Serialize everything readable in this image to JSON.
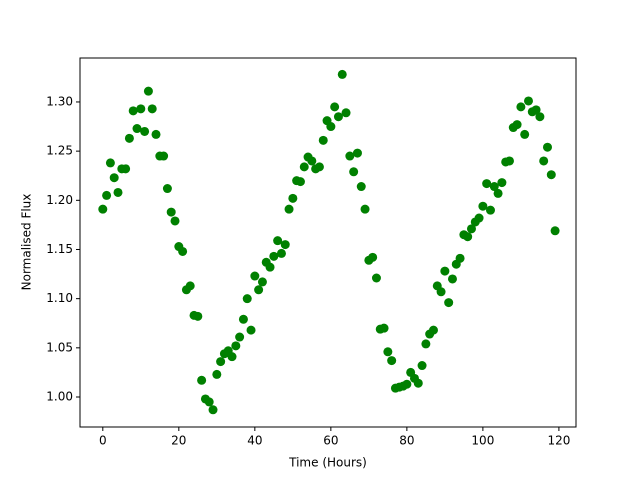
{
  "chart_data": {
    "type": "scatter",
    "color": "#008000",
    "grid": false,
    "xlabel": "Time (Hours)",
    "ylabel": "Normalised Flux",
    "xlim": [
      -6,
      124.5
    ],
    "ylim": [
      0.9695,
      1.3447
    ],
    "xticks": [
      0,
      20,
      40,
      60,
      80,
      100,
      120
    ],
    "yticks": [
      {
        "value": 1.0,
        "label": "1.00"
      },
      1.05,
      {
        "value": 1.1,
        "label": "1.10"
      },
      1.15,
      {
        "value": 1.2,
        "label": "1.20"
      },
      1.25,
      {
        "value": 1.3,
        "label": "1.30"
      }
    ],
    "x": [
      0,
      1,
      2,
      3,
      4,
      5,
      6,
      7,
      8,
      9,
      10,
      11,
      12,
      13,
      14,
      15,
      16,
      17,
      18,
      19,
      20,
      21,
      22,
      23,
      24,
      25,
      26,
      27,
      28,
      29,
      30,
      31,
      32,
      33,
      34,
      35,
      36,
      37,
      38,
      39,
      40,
      41,
      42,
      43,
      44,
      45,
      46,
      47,
      48,
      49,
      50,
      51,
      52,
      53,
      54,
      55,
      56,
      57,
      58,
      59,
      60,
      61,
      62,
      63,
      64,
      65,
      66,
      67,
      68,
      69,
      70,
      71,
      72,
      73,
      74,
      75,
      76,
      77,
      78,
      79,
      80,
      81,
      82,
      83,
      84,
      85,
      86,
      87,
      88,
      89,
      90,
      91,
      92,
      93,
      94,
      95,
      96,
      97,
      98,
      99,
      100,
      101,
      102,
      103,
      104,
      105,
      106,
      107,
      108,
      109,
      110,
      111,
      112,
      113,
      114,
      115,
      116,
      117,
      118,
      119
    ],
    "values": [
      1.191,
      1.205,
      1.238,
      1.223,
      1.208,
      1.232,
      1.232,
      1.263,
      1.291,
      1.273,
      1.293,
      1.27,
      1.311,
      1.293,
      1.267,
      1.245,
      1.245,
      1.212,
      1.188,
      1.179,
      1.153,
      1.148,
      1.109,
      1.113,
      1.083,
      1.082,
      1.017,
      0.998,
      0.995,
      0.987,
      1.023,
      1.036,
      1.044,
      1.047,
      1.041,
      1.052,
      1.061,
      1.079,
      1.1,
      1.068,
      1.123,
      1.109,
      1.117,
      1.137,
      1.132,
      1.143,
      1.159,
      1.146,
      1.155,
      1.191,
      1.202,
      1.22,
      1.219,
      1.234,
      1.244,
      1.24,
      1.232,
      1.234,
      1.261,
      1.281,
      1.275,
      1.295,
      1.285,
      1.328,
      1.289,
      1.245,
      1.229,
      1.248,
      1.214,
      1.191,
      1.139,
      1.142,
      1.121,
      1.069,
      1.07,
      1.046,
      1.037,
      1.009,
      1.01,
      1.011,
      1.013,
      1.025,
      1.019,
      1.014,
      1.032,
      1.054,
      1.064,
      1.068,
      1.113,
      1.107,
      1.128,
      1.096,
      1.12,
      1.135,
      1.141,
      1.165,
      1.163,
      1.171,
      1.178,
      1.182,
      1.194,
      1.217,
      1.19,
      1.214,
      1.207,
      1.218,
      1.239,
      1.24,
      1.274,
      1.277,
      1.295,
      1.267,
      1.301,
      1.29,
      1.292,
      1.285,
      1.24,
      1.254,
      1.226,
      1.169
    ]
  }
}
